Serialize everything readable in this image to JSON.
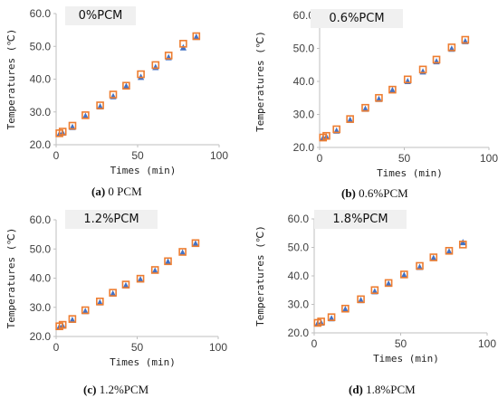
{
  "chart_data": [
    {
      "type": "scatter",
      "panel_label": "0%PCM",
      "caption_prefix": "(a)",
      "caption_text": " 0 PCM",
      "xlabel": "Times (min)",
      "ylabel": "Temperatures (℃)",
      "xlim": [
        0,
        100
      ],
      "ylim": [
        20,
        60
      ],
      "xticks": [
        "0",
        "50",
        "100"
      ],
      "yticks": [
        "20.0",
        "30.0",
        "40.0",
        "50.0",
        "60.0"
      ],
      "grid": false,
      "legend": "none",
      "series": [
        {
          "marker": "square",
          "color": "#ED7D31",
          "x": [
            2,
            4,
            10,
            18,
            27,
            35,
            43,
            52,
            61,
            69,
            78,
            86
          ],
          "y": [
            23.5,
            24.0,
            25.8,
            29.0,
            32.0,
            35.3,
            38.0,
            41.5,
            44.3,
            47.2,
            50.8,
            53.1
          ]
        },
        {
          "marker": "triangle",
          "color": "#4472C4",
          "x": [
            2,
            4,
            10,
            18,
            27,
            35,
            43,
            52,
            61,
            69,
            78,
            86
          ],
          "y": [
            23.2,
            23.6,
            25.3,
            28.7,
            31.6,
            34.7,
            37.8,
            40.6,
            43.6,
            46.6,
            49.6,
            52.8
          ]
        }
      ]
    },
    {
      "type": "scatter",
      "panel_label": "0.6%PCM",
      "caption_prefix": "(b)",
      "caption_text": " 0.6%PCM",
      "xlabel": "Times (min)",
      "ylabel": "Temperatures (℃)",
      "xlim": [
        0,
        100
      ],
      "ylim": [
        20,
        60
      ],
      "xticks": [
        "0",
        "50",
        "100"
      ],
      "yticks": [
        "20.0",
        "30.0",
        "40.0",
        "50.0",
        "60.0"
      ],
      "grid": false,
      "legend": "none",
      "series": [
        {
          "marker": "square",
          "color": "#ED7D31",
          "x": [
            2,
            4,
            10,
            18,
            27,
            35,
            43,
            52,
            61,
            69,
            78,
            86
          ],
          "y": [
            23.0,
            23.5,
            25.5,
            28.6,
            32.0,
            35.0,
            37.5,
            40.6,
            43.6,
            46.6,
            50.3,
            52.6
          ]
        },
        {
          "marker": "triangle",
          "color": "#4472C4",
          "x": [
            2,
            4,
            10,
            18,
            27,
            35,
            43,
            52,
            61,
            69,
            78,
            86
          ],
          "y": [
            22.8,
            23.2,
            25.0,
            28.3,
            31.6,
            34.6,
            37.3,
            40.0,
            42.9,
            46.0,
            49.8,
            52.1
          ]
        }
      ]
    },
    {
      "type": "scatter",
      "panel_label": "1.2%PCM",
      "caption_prefix": "(c)",
      "caption_text": " 1.2%PCM",
      "xlabel": "Times (min)",
      "ylabel": "Temperatures (℃)",
      "xlim": [
        0,
        100
      ],
      "ylim": [
        20,
        60
      ],
      "xticks": [
        "0",
        "50",
        "100"
      ],
      "yticks": [
        "20.0",
        "30.0",
        "40.0",
        "50.0",
        "60.0"
      ],
      "grid": false,
      "legend": "none",
      "series": [
        {
          "marker": "square",
          "color": "#ED7D31",
          "x": [
            2,
            4,
            10,
            18,
            27,
            35,
            43,
            52,
            61,
            69,
            78,
            86
          ],
          "y": [
            23.5,
            24.0,
            26.0,
            29.0,
            32.0,
            35.0,
            37.8,
            39.8,
            42.8,
            45.8,
            49.0,
            52.0
          ]
        },
        {
          "marker": "triangle",
          "color": "#4472C4",
          "x": [
            2,
            4,
            10,
            18,
            27,
            35,
            43,
            52,
            61,
            69,
            78,
            86
          ],
          "y": [
            23.2,
            23.6,
            25.6,
            28.6,
            31.6,
            34.6,
            37.4,
            39.5,
            42.5,
            45.6,
            48.7,
            51.8
          ]
        }
      ]
    },
    {
      "type": "scatter",
      "panel_label": "1.8%PCM",
      "caption_prefix": "(d)",
      "caption_text": " 1.8%PCM",
      "xlabel": "Times (min)",
      "ylabel": "Temperatures (℃)",
      "xlim": [
        0,
        100
      ],
      "ylim": [
        20,
        60
      ],
      "xticks": [
        "0",
        "50",
        "100"
      ],
      "yticks": [
        "20.0",
        "30.0",
        "40.0",
        "50.0",
        "60.0"
      ],
      "grid": false,
      "legend": "none",
      "series": [
        {
          "marker": "square",
          "color": "#ED7D31",
          "x": [
            2,
            4,
            10,
            18,
            27,
            35,
            43,
            52,
            61,
            69,
            78,
            86
          ],
          "y": [
            23.5,
            24.0,
            25.5,
            28.5,
            31.8,
            35.0,
            37.5,
            40.5,
            43.5,
            46.5,
            48.8,
            51.0
          ]
        },
        {
          "marker": "triangle",
          "color": "#4472C4",
          "x": [
            2,
            4,
            10,
            18,
            27,
            35,
            43,
            52,
            61,
            69,
            78,
            86
          ],
          "y": [
            23.2,
            23.5,
            25.0,
            28.2,
            31.4,
            34.5,
            37.2,
            40.2,
            43.0,
            46.2,
            48.5,
            51.7
          ]
        }
      ]
    }
  ]
}
